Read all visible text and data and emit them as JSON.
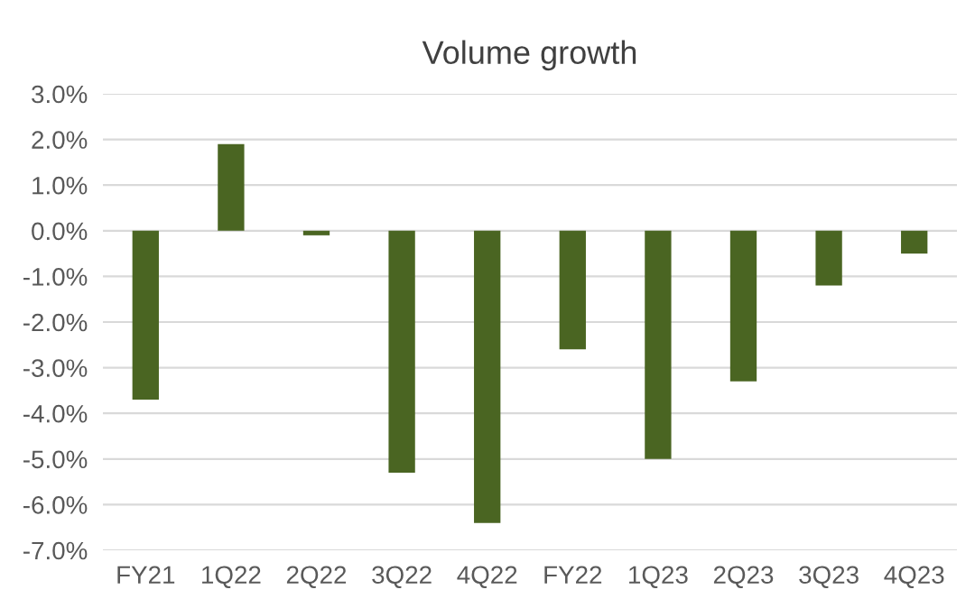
{
  "chart_data": {
    "type": "bar",
    "title": "Volume growth",
    "categories": [
      "FY21",
      "1Q22",
      "2Q22",
      "3Q22",
      "4Q22",
      "FY22",
      "1Q23",
      "2Q23",
      "3Q23",
      "4Q23"
    ],
    "values": [
      -3.7,
      1.9,
      -0.1,
      -5.3,
      -6.4,
      -2.6,
      -5.0,
      -3.3,
      -1.2,
      -0.5
    ],
    "color": "#4a6522",
    "ylim": [
      -7,
      3
    ],
    "yticks": [
      {
        "value": 3,
        "label": "3.0%"
      },
      {
        "value": 2,
        "label": "2.0%"
      },
      {
        "value": 1,
        "label": "1.0%"
      },
      {
        "value": 0,
        "label": "0.0%"
      },
      {
        "value": -1,
        "label": "-1.0%"
      },
      {
        "value": -2,
        "label": "-2.0%"
      },
      {
        "value": -3,
        "label": "-3.0%"
      },
      {
        "value": -4,
        "label": "-4.0%"
      },
      {
        "value": -5,
        "label": "-5.0%"
      },
      {
        "value": -6,
        "label": "-6.0%"
      },
      {
        "value": -7,
        "label": "-7.0%"
      }
    ],
    "grid": "y"
  }
}
